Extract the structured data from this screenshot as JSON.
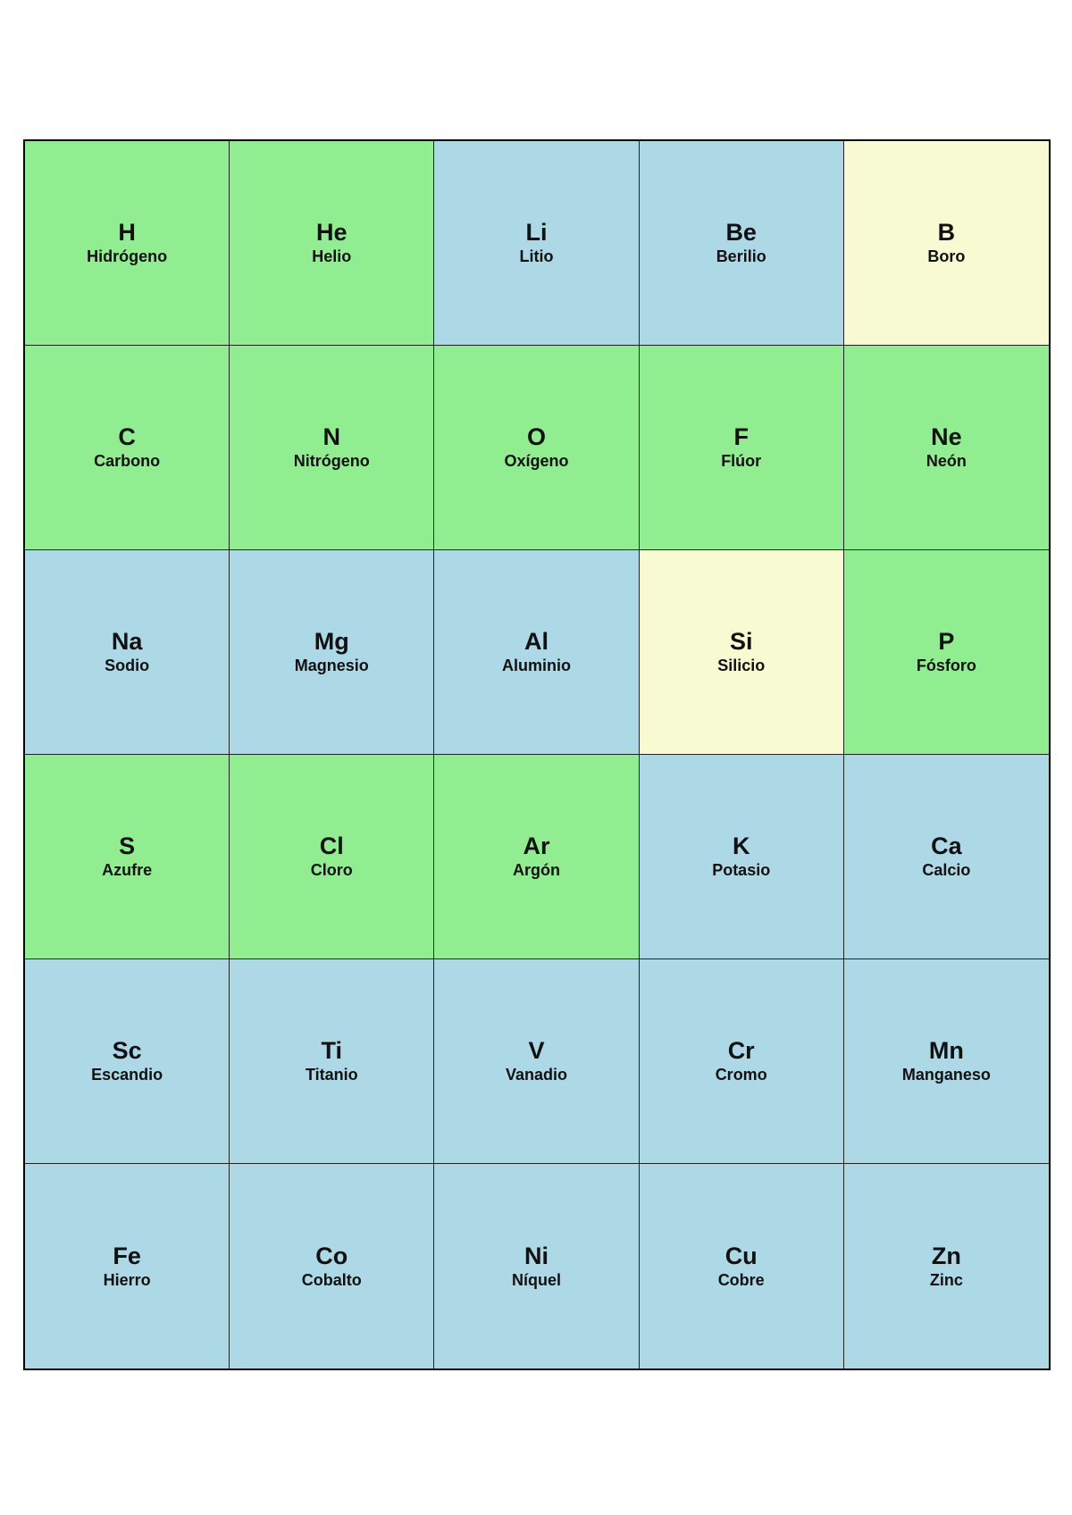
{
  "colors": {
    "green": "#90ee90",
    "blue": "#add8e6",
    "yellow": "#f8fad2"
  },
  "elements": [
    {
      "symbol": "H",
      "name": "Hidrógeno",
      "color": "green"
    },
    {
      "symbol": "He",
      "name": "Helio",
      "color": "green"
    },
    {
      "symbol": "Li",
      "name": "Litio",
      "color": "blue"
    },
    {
      "symbol": "Be",
      "name": "Berilio",
      "color": "blue"
    },
    {
      "symbol": "B",
      "name": "Boro",
      "color": "yellow"
    },
    {
      "symbol": "C",
      "name": "Carbono",
      "color": "green"
    },
    {
      "symbol": "N",
      "name": "Nitrógeno",
      "color": "green"
    },
    {
      "symbol": "O",
      "name": "Oxígeno",
      "color": "green"
    },
    {
      "symbol": "F",
      "name": "Flúor",
      "color": "green"
    },
    {
      "symbol": "Ne",
      "name": "Neón",
      "color": "green"
    },
    {
      "symbol": "Na",
      "name": "Sodio",
      "color": "blue"
    },
    {
      "symbol": "Mg",
      "name": "Magnesio",
      "color": "blue"
    },
    {
      "symbol": "Al",
      "name": "Aluminio",
      "color": "blue"
    },
    {
      "symbol": "Si",
      "name": "Silicio",
      "color": "yellow"
    },
    {
      "symbol": "P",
      "name": "Fósforo",
      "color": "green"
    },
    {
      "symbol": "S",
      "name": "Azufre",
      "color": "green"
    },
    {
      "symbol": "Cl",
      "name": "Cloro",
      "color": "green"
    },
    {
      "symbol": "Ar",
      "name": "Argón",
      "color": "green"
    },
    {
      "symbol": "K",
      "name": "Potasio",
      "color": "blue"
    },
    {
      "symbol": "Ca",
      "name": "Calcio",
      "color": "blue"
    },
    {
      "symbol": "Sc",
      "name": "Escandio",
      "color": "blue"
    },
    {
      "symbol": "Ti",
      "name": "Titanio",
      "color": "blue"
    },
    {
      "symbol": "V",
      "name": "Vanadio",
      "color": "blue"
    },
    {
      "symbol": "Cr",
      "name": "Cromo",
      "color": "blue"
    },
    {
      "symbol": "Mn",
      "name": "Manganeso",
      "color": "blue"
    },
    {
      "symbol": "Fe",
      "name": "Hierro",
      "color": "blue"
    },
    {
      "symbol": "Co",
      "name": "Cobalto",
      "color": "blue"
    },
    {
      "symbol": "Ni",
      "name": "Níquel",
      "color": "blue"
    },
    {
      "symbol": "Cu",
      "name": "Cobre",
      "color": "blue"
    },
    {
      "symbol": "Zn",
      "name": "Zinc",
      "color": "blue"
    }
  ]
}
